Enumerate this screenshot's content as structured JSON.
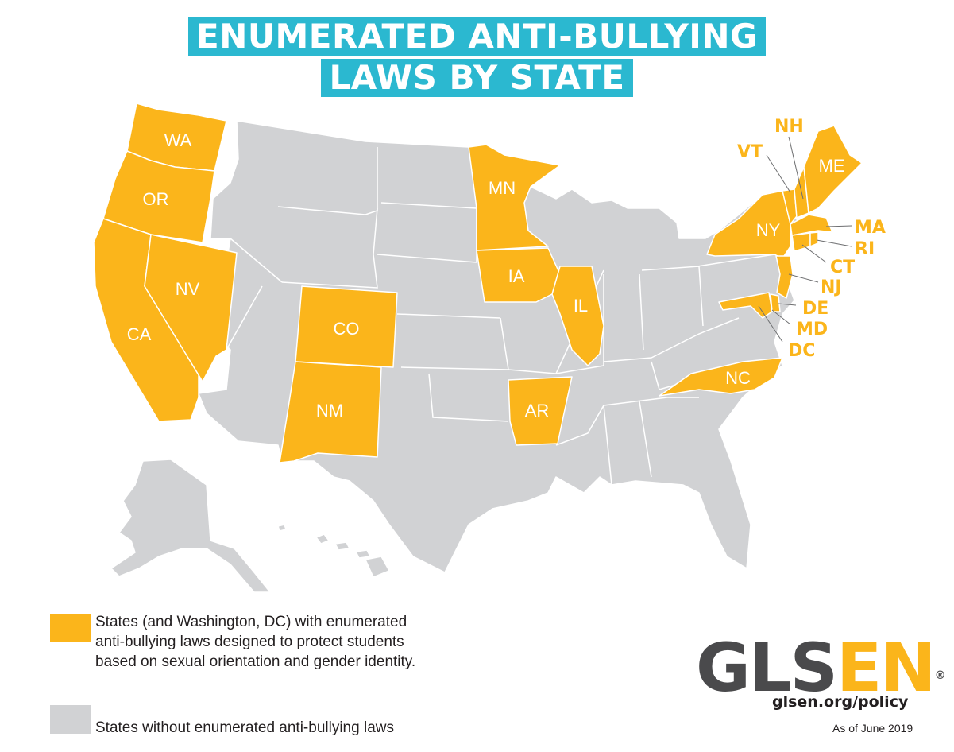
{
  "title": {
    "line1": "ENUMERATED ANTI-BULLYING",
    "line2": "LAWS BY STATE"
  },
  "colors": {
    "with_laws": "#fbb51b",
    "without_laws": "#d1d2d4",
    "title_bg": "#2bb8d0",
    "label_in_state": "#ffffff",
    "label_callout": "#fbb51b",
    "logo_dark": "#4a4a4c"
  },
  "map": {
    "states_with_laws": [
      "WA",
      "OR",
      "CA",
      "NV",
      "CO",
      "NM",
      "MN",
      "IA",
      "IL",
      "AR",
      "NC",
      "NY",
      "VT",
      "NH",
      "ME",
      "MA",
      "RI",
      "CT",
      "NJ",
      "DE",
      "MD",
      "DC"
    ],
    "labels": {
      "WA": "WA",
      "OR": "OR",
      "CA": "CA",
      "NV": "NV",
      "CO": "CO",
      "NM": "NM",
      "MN": "MN",
      "IA": "IA",
      "IL": "IL",
      "AR": "AR",
      "NC": "NC",
      "NY": "NY",
      "VT": "VT",
      "NH": "NH",
      "ME": "ME",
      "MA": "MA",
      "RI": "RI",
      "CT": "CT",
      "NJ": "NJ",
      "DE": "DE",
      "MD": "MD",
      "DC": "DC"
    }
  },
  "legend": {
    "with_laws": "States (and Washington, DC) with enumerated anti-bullying laws designed to protect students based on sexual orientation and gender identity.",
    "without_laws": "States without enumerated anti-bullying laws"
  },
  "branding": {
    "logo_part1": "GLS",
    "logo_part2": "EN",
    "logo_reg": "®",
    "url": "glsen.org/policy",
    "as_of": "As of June 2019"
  }
}
